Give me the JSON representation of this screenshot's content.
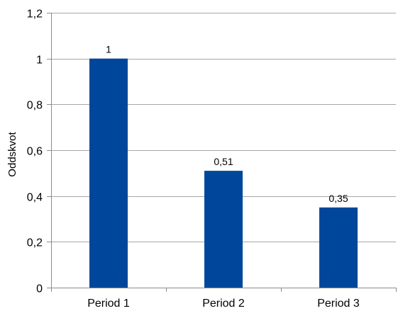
{
  "chart_data": {
    "type": "bar",
    "categories": [
      "Period 1",
      "Period 2",
      "Period 3"
    ],
    "values": [
      1,
      0.51,
      0.35
    ],
    "data_labels": [
      "1",
      "0,51",
      "0,35"
    ],
    "ylabel": "Oddskvot",
    "xlabel": "",
    "title": "",
    "ylim": [
      0,
      1.2
    ],
    "yticks": [
      0,
      0.2,
      0.4,
      0.6,
      0.8,
      1,
      1.2
    ],
    "ytick_labels": [
      "0",
      "0,2",
      "0,4",
      "0,6",
      "0,8",
      "1",
      "1,2"
    ],
    "grid": true,
    "legend": "none",
    "bar_color": "#00479b",
    "grid_color": "#a6a6a6",
    "axis_color": "#8c8c8c"
  }
}
